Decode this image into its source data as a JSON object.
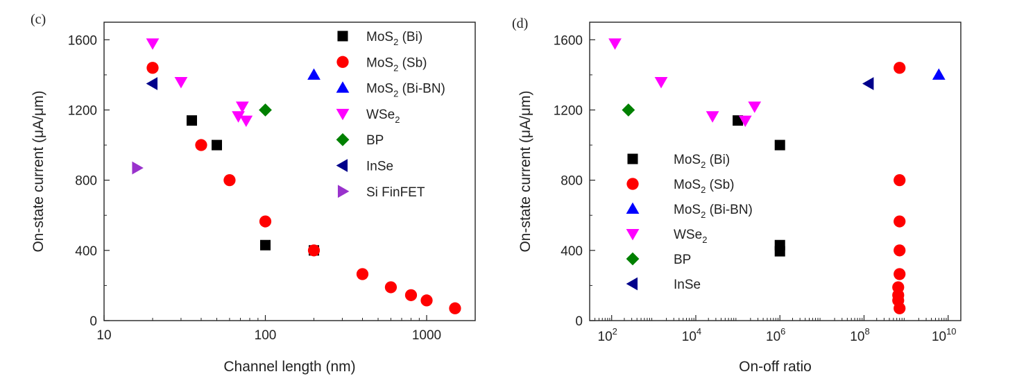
{
  "chart_data": [
    {
      "type": "scatter",
      "panel_label": "(c)",
      "xlabel": "Channel length (nm)",
      "ylabel": "On-state current (μA/μm)",
      "x_scale": "log",
      "xlim": [
        10,
        2000
      ],
      "ylim": [
        0,
        1700
      ],
      "x_ticks": [
        {
          "value": 10,
          "label": "10"
        },
        {
          "value": 100,
          "label": "100"
        },
        {
          "value": 1000,
          "label": "1000"
        }
      ],
      "y_ticks": [
        0,
        400,
        800,
        1200,
        1600
      ],
      "grid": false,
      "legend_position": "top-right",
      "series": [
        {
          "name": "MoS",
          "subscript": "2",
          "suffix": " (Bi)",
          "marker": "square",
          "color": "#000000",
          "points": [
            [
              35,
              1140
            ],
            [
              50,
              1000
            ],
            [
              100,
              430
            ],
            [
              200,
              400
            ]
          ]
        },
        {
          "name": "MoS",
          "subscript": "2",
          "suffix": " (Sb)",
          "marker": "circle",
          "color": "#ff0000",
          "points": [
            [
              20,
              1440
            ],
            [
              40,
              1000
            ],
            [
              60,
              800
            ],
            [
              100,
              565
            ],
            [
              200,
              400
            ],
            [
              400,
              265
            ],
            [
              600,
              190
            ],
            [
              800,
              145
            ],
            [
              1000,
              115
            ],
            [
              1500,
              70
            ]
          ]
        },
        {
          "name": "MoS",
          "subscript": "2",
          "suffix": " (Bi-BN)",
          "marker": "triangle-up",
          "color": "#0000ff",
          "points": [
            [
              200,
              1400
            ]
          ]
        },
        {
          "name": "WSe",
          "subscript": "2",
          "suffix": "",
          "marker": "triangle-down",
          "color": "#ff00ff",
          "points": [
            [
              20,
              1580
            ],
            [
              30,
              1360
            ],
            [
              72,
              1220
            ],
            [
              68,
              1165
            ],
            [
              76,
              1140
            ]
          ]
        },
        {
          "name": "BP",
          "subscript": "",
          "suffix": "",
          "marker": "diamond",
          "color": "#008000",
          "points": [
            [
              100,
              1200
            ]
          ]
        },
        {
          "name": "InSe",
          "subscript": "",
          "suffix": "",
          "marker": "triangle-left",
          "color": "#00008b",
          "points": [
            [
              20,
              1350
            ]
          ]
        },
        {
          "name": "Si FinFET",
          "subscript": "",
          "suffix": "",
          "marker": "triangle-right",
          "color": "#9932cc",
          "points": [
            [
              16,
              870
            ]
          ]
        }
      ]
    },
    {
      "type": "scatter",
      "panel_label": "(d)",
      "xlabel": "On-off ratio",
      "ylabel": "On-state current (μA/μm)",
      "x_scale": "log",
      "xlim": [
        30,
        20000000000
      ],
      "ylim": [
        0,
        1700
      ],
      "x_ticks": [
        {
          "value": 100,
          "base": "10",
          "exp": "2"
        },
        {
          "value": 10000,
          "base": "10",
          "exp": "4"
        },
        {
          "value": 1000000,
          "base": "10",
          "exp": "6"
        },
        {
          "value": 100000000,
          "base": "10",
          "exp": "8"
        },
        {
          "value": 10000000000,
          "base": "10",
          "exp": "10"
        }
      ],
      "y_ticks": [
        0,
        400,
        800,
        1200,
        1600
      ],
      "grid": false,
      "legend_position": "center-left",
      "series": [
        {
          "name": "MoS",
          "subscript": "2",
          "suffix": " (Bi)",
          "marker": "square",
          "color": "#000000",
          "points": [
            [
              100000,
              1140
            ],
            [
              1000000,
              1000
            ],
            [
              1000000,
              430
            ],
            [
              1000000,
              395
            ]
          ]
        },
        {
          "name": "MoS",
          "subscript": "2",
          "suffix": " (Sb)",
          "marker": "circle",
          "color": "#ff0000",
          "points": [
            [
              700000000,
              1440
            ],
            [
              700000000,
              800
            ],
            [
              700000000,
              565
            ],
            [
              700000000,
              400
            ],
            [
              700000000,
              265
            ],
            [
              650000000,
              190
            ],
            [
              650000000,
              145
            ],
            [
              650000000,
              115
            ],
            [
              700000000,
              70
            ]
          ]
        },
        {
          "name": "MoS",
          "subscript": "2",
          "suffix": " (Bi-BN)",
          "marker": "triangle-up",
          "color": "#0000ff",
          "points": [
            [
              6000000000,
              1400
            ]
          ]
        },
        {
          "name": "WSe",
          "subscript": "2",
          "suffix": "",
          "marker": "triangle-down",
          "color": "#ff00ff",
          "points": [
            [
              120,
              1580
            ],
            [
              1500,
              1360
            ],
            [
              25000,
              1165
            ],
            [
              250000,
              1220
            ],
            [
              150000,
              1140
            ]
          ]
        },
        {
          "name": "BP",
          "subscript": "",
          "suffix": "",
          "marker": "diamond",
          "color": "#008000",
          "points": [
            [
              250,
              1200
            ]
          ]
        },
        {
          "name": "InSe",
          "subscript": "",
          "suffix": "",
          "marker": "triangle-left",
          "color": "#00008b",
          "points": [
            [
              130000000,
              1350
            ]
          ]
        }
      ]
    }
  ]
}
